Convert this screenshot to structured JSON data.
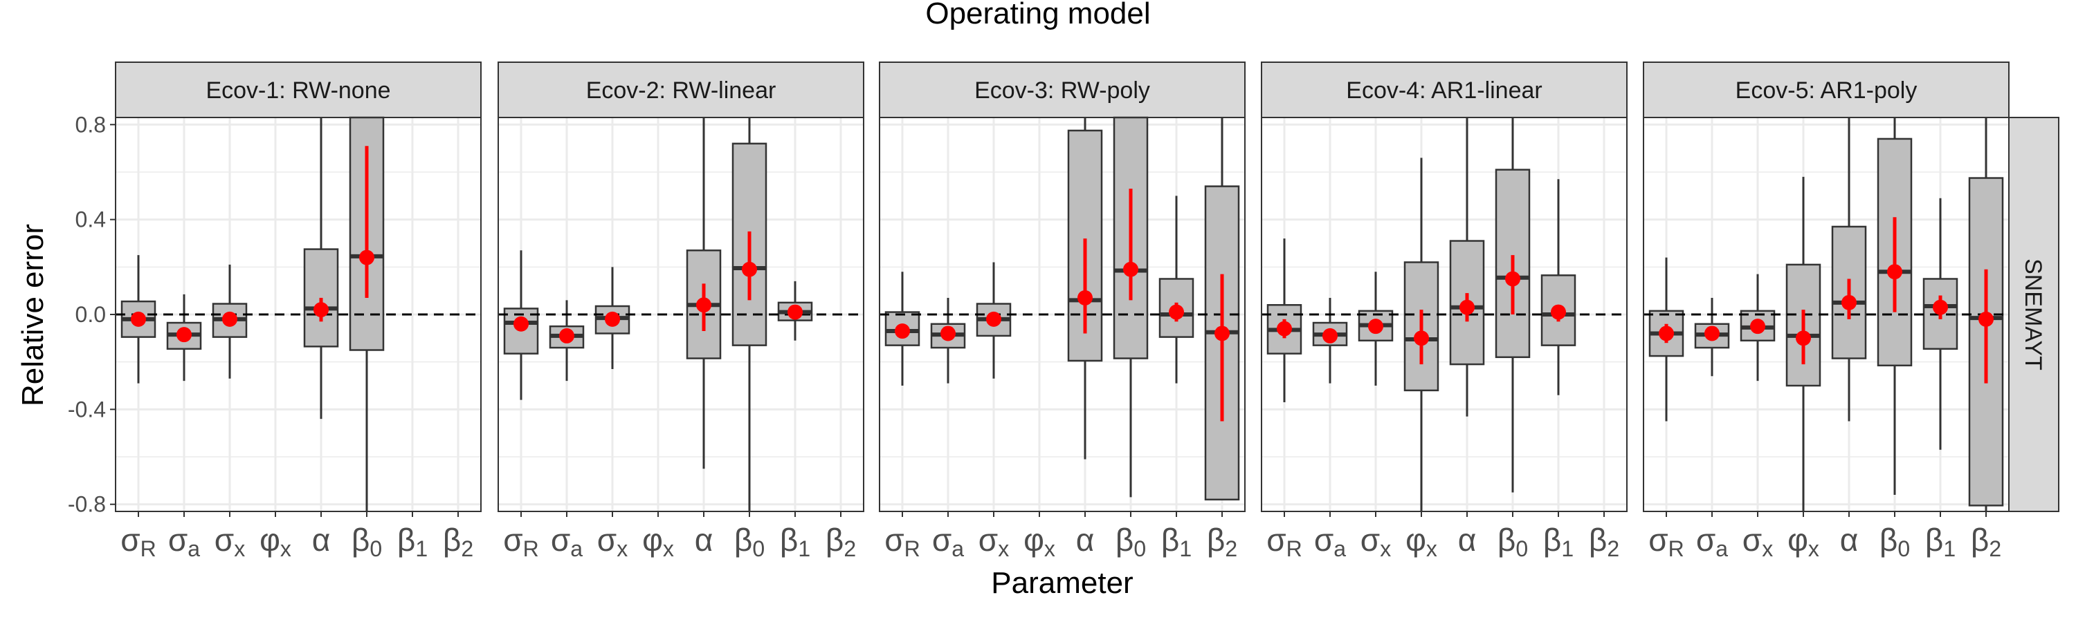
{
  "chart_data": {
    "type": "boxplot",
    "title": "Operating model",
    "xlabel": "Parameter",
    "ylabel": "Relative error",
    "row_strip": "SNEMAYT",
    "ylim": [
      -0.83,
      0.83
    ],
    "yticks": [
      -0.8,
      -0.4,
      0.0,
      0.4,
      0.8
    ],
    "ytick_labels": [
      "-0.8",
      "-0.4",
      "0.0",
      "0.4",
      "0.8"
    ],
    "reference_line": 0.0,
    "grid": true,
    "categories": [
      {
        "base": "σ",
        "sub": "R"
      },
      {
        "base": "σ",
        "sub": "a"
      },
      {
        "base": "σ",
        "sub": "x"
      },
      {
        "base": "φ",
        "sub": "x"
      },
      {
        "base": "α",
        "sub": ""
      },
      {
        "base": "β",
        "sub": "0"
      },
      {
        "base": "β",
        "sub": "1"
      },
      {
        "base": "β",
        "sub": "2"
      }
    ],
    "colors": {
      "box_fill": "#bebebe",
      "box_edge": "#333333",
      "point": "#ff0000",
      "strip_fill": "#d9d9d9",
      "grid": "#ebebeb",
      "panel_border": "#333333"
    },
    "panels": [
      {
        "strip": "Ecov-1:  RW-none",
        "boxes": [
          {
            "cat": 0,
            "lo": -0.29,
            "q1": -0.095,
            "med": -0.02,
            "q3": 0.055,
            "hi": 0.25,
            "mean": -0.02,
            "ci": null
          },
          {
            "cat": 1,
            "lo": -0.28,
            "q1": -0.145,
            "med": -0.085,
            "q3": -0.035,
            "hi": 0.085,
            "mean": -0.085,
            "ci": null
          },
          {
            "cat": 2,
            "lo": -0.27,
            "q1": -0.095,
            "med": -0.02,
            "q3": 0.045,
            "hi": 0.21,
            "mean": -0.02,
            "ci": null
          },
          {
            "cat": 4,
            "lo": -0.44,
            "q1": -0.135,
            "med": 0.025,
            "q3": 0.275,
            "hi": 0.83,
            "mean": 0.02,
            "ci": [
              -0.03,
              0.07
            ]
          },
          {
            "cat": 5,
            "lo": -0.83,
            "q1": -0.15,
            "med": 0.245,
            "q3": 0.83,
            "hi": 0.83,
            "mean": 0.24,
            "ci": [
              0.07,
              0.71
            ]
          }
        ]
      },
      {
        "strip": "Ecov-2:  RW-linear",
        "boxes": [
          {
            "cat": 0,
            "lo": -0.36,
            "q1": -0.165,
            "med": -0.035,
            "q3": 0.025,
            "hi": 0.27,
            "mean": -0.04,
            "ci": null
          },
          {
            "cat": 1,
            "lo": -0.28,
            "q1": -0.14,
            "med": -0.09,
            "q3": -0.05,
            "hi": 0.06,
            "mean": -0.09,
            "ci": null
          },
          {
            "cat": 2,
            "lo": -0.23,
            "q1": -0.08,
            "med": -0.015,
            "q3": 0.035,
            "hi": 0.2,
            "mean": -0.02,
            "ci": null
          },
          {
            "cat": 4,
            "lo": -0.65,
            "q1": -0.185,
            "med": 0.04,
            "q3": 0.27,
            "hi": 0.83,
            "mean": 0.04,
            "ci": [
              -0.07,
              0.13
            ]
          },
          {
            "cat": 5,
            "lo": -0.83,
            "q1": -0.13,
            "med": 0.195,
            "q3": 0.72,
            "hi": 0.83,
            "mean": 0.19,
            "ci": [
              0.06,
              0.35
            ]
          },
          {
            "cat": 6,
            "lo": -0.11,
            "q1": -0.025,
            "med": 0.01,
            "q3": 0.05,
            "hi": 0.14,
            "mean": 0.01,
            "ci": null
          }
        ]
      },
      {
        "strip": "Ecov-3:  RW-poly",
        "boxes": [
          {
            "cat": 0,
            "lo": -0.3,
            "q1": -0.13,
            "med": -0.07,
            "q3": 0.01,
            "hi": 0.18,
            "mean": -0.07,
            "ci": null
          },
          {
            "cat": 1,
            "lo": -0.29,
            "q1": -0.14,
            "med": -0.085,
            "q3": -0.04,
            "hi": 0.07,
            "mean": -0.08,
            "ci": null
          },
          {
            "cat": 2,
            "lo": -0.27,
            "q1": -0.09,
            "med": -0.02,
            "q3": 0.045,
            "hi": 0.22,
            "mean": -0.02,
            "ci": null
          },
          {
            "cat": 4,
            "lo": -0.61,
            "q1": -0.195,
            "med": 0.06,
            "q3": 0.775,
            "hi": 0.83,
            "mean": 0.07,
            "ci": [
              -0.08,
              0.32
            ]
          },
          {
            "cat": 5,
            "lo": -0.77,
            "q1": -0.185,
            "med": 0.185,
            "q3": 0.83,
            "hi": 0.83,
            "mean": 0.19,
            "ci": [
              0.06,
              0.53
            ]
          },
          {
            "cat": 6,
            "lo": -0.29,
            "q1": -0.095,
            "med": 0.0,
            "q3": 0.15,
            "hi": 0.5,
            "mean": 0.01,
            "ci": [
              -0.03,
              0.05
            ]
          },
          {
            "cat": 7,
            "lo": -0.78,
            "q1": -0.78,
            "med": -0.075,
            "q3": 0.54,
            "hi": 0.83,
            "mean": -0.08,
            "ci": [
              -0.45,
              0.17
            ]
          }
        ]
      },
      {
        "strip": "Ecov-4:  AR1-linear",
        "boxes": [
          {
            "cat": 0,
            "lo": -0.37,
            "q1": -0.165,
            "med": -0.065,
            "q3": 0.04,
            "hi": 0.32,
            "mean": -0.06,
            "ci": [
              -0.1,
              -0.02
            ]
          },
          {
            "cat": 1,
            "lo": -0.29,
            "q1": -0.13,
            "med": -0.085,
            "q3": -0.035,
            "hi": 0.07,
            "mean": -0.09,
            "ci": null
          },
          {
            "cat": 2,
            "lo": -0.3,
            "q1": -0.11,
            "med": -0.045,
            "q3": 0.015,
            "hi": 0.18,
            "mean": -0.05,
            "ci": null
          },
          {
            "cat": 3,
            "lo": -0.83,
            "q1": -0.32,
            "med": -0.105,
            "q3": 0.22,
            "hi": 0.66,
            "mean": -0.1,
            "ci": [
              -0.21,
              0.02
            ]
          },
          {
            "cat": 4,
            "lo": -0.43,
            "q1": -0.21,
            "med": 0.03,
            "q3": 0.31,
            "hi": 0.83,
            "mean": 0.03,
            "ci": [
              -0.03,
              0.09
            ]
          },
          {
            "cat": 5,
            "lo": -0.75,
            "q1": -0.18,
            "med": 0.155,
            "q3": 0.61,
            "hi": 0.83,
            "mean": 0.15,
            "ci": [
              0.0,
              0.25
            ]
          },
          {
            "cat": 6,
            "lo": -0.34,
            "q1": -0.13,
            "med": 0.0,
            "q3": 0.165,
            "hi": 0.57,
            "mean": 0.01,
            "ci": [
              -0.03,
              0.04
            ]
          }
        ]
      },
      {
        "strip": "Ecov-5:  AR1-poly",
        "boxes": [
          {
            "cat": 0,
            "lo": -0.45,
            "q1": -0.175,
            "med": -0.08,
            "q3": 0.015,
            "hi": 0.24,
            "mean": -0.08,
            "ci": [
              -0.12,
              -0.04
            ]
          },
          {
            "cat": 1,
            "lo": -0.26,
            "q1": -0.14,
            "med": -0.085,
            "q3": -0.04,
            "hi": 0.07,
            "mean": -0.08,
            "ci": null
          },
          {
            "cat": 2,
            "lo": -0.28,
            "q1": -0.11,
            "med": -0.055,
            "q3": 0.015,
            "hi": 0.17,
            "mean": -0.05,
            "ci": null
          },
          {
            "cat": 3,
            "lo": -0.83,
            "q1": -0.3,
            "med": -0.09,
            "q3": 0.21,
            "hi": 0.58,
            "mean": -0.1,
            "ci": [
              -0.21,
              0.02
            ]
          },
          {
            "cat": 4,
            "lo": -0.45,
            "q1": -0.185,
            "med": 0.05,
            "q3": 0.37,
            "hi": 0.83,
            "mean": 0.05,
            "ci": [
              -0.02,
              0.15
            ]
          },
          {
            "cat": 5,
            "lo": -0.76,
            "q1": -0.215,
            "med": 0.18,
            "q3": 0.74,
            "hi": 0.83,
            "mean": 0.18,
            "ci": [
              0.01,
              0.41
            ]
          },
          {
            "cat": 6,
            "lo": -0.57,
            "q1": -0.145,
            "med": 0.035,
            "q3": 0.15,
            "hi": 0.49,
            "mean": 0.03,
            "ci": [
              -0.02,
              0.08
            ]
          },
          {
            "cat": 7,
            "lo": -0.83,
            "q1": -0.805,
            "med": -0.015,
            "q3": 0.575,
            "hi": 0.83,
            "mean": -0.02,
            "ci": [
              -0.29,
              0.19
            ]
          }
        ]
      }
    ]
  }
}
